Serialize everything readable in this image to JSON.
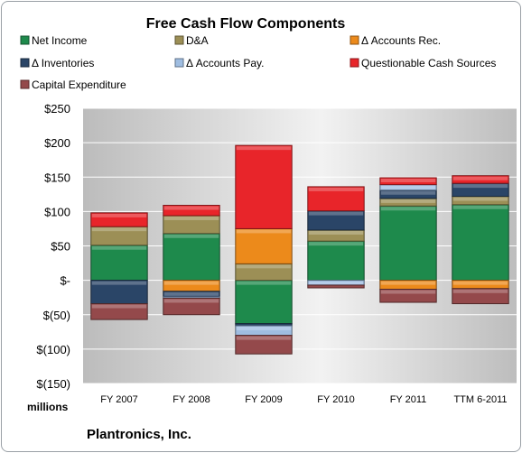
{
  "chart_data": {
    "type": "bar",
    "stacked": true,
    "title": "Free Cash Flow Components",
    "unit_label": "millions",
    "company": "Plantronics, Inc.",
    "categories": [
      "FY 2007",
      "FY 2008",
      "FY 2009",
      "FY 2010",
      "FY 2011",
      "TTM 6-2011"
    ],
    "ylim": [
      -150,
      250
    ],
    "yticks": [
      250,
      200,
      150,
      100,
      50,
      0,
      -50,
      -100,
      -150
    ],
    "ytick_labels": [
      "$250",
      "$200",
      "$150",
      "$100",
      "$50",
      "$-",
      "$(50)",
      "$(100)",
      "$(150)"
    ],
    "grid": true,
    "legend_position": "top",
    "series": [
      {
        "name": "Net Income",
        "color": "#1e8a4c",
        "values": [
          51,
          68,
          -63,
          57,
          108,
          110
        ]
      },
      {
        "name": "D&A",
        "color": "#9c8f56",
        "values": [
          27,
          26,
          24,
          16,
          11,
          12
        ]
      },
      {
        "name": "Δ Accounts Rec.",
        "color": "#ec8a1b",
        "values": [
          0,
          -16,
          51,
          0,
          -13,
          -12
        ]
      },
      {
        "name": "Δ Inventories",
        "color": "#2a4567",
        "values": [
          -34,
          -8,
          -3,
          28,
          12,
          19
        ]
      },
      {
        "name": "Δ Accounts Pay.",
        "color": "#9fbde1",
        "values": [
          0,
          -2,
          -14,
          -7,
          8,
          0
        ]
      },
      {
        "name": "Questionable Cash Sources",
        "color": "#e8252a",
        "values": [
          20,
          15,
          121,
          35,
          10,
          11
        ]
      },
      {
        "name": "Capital Expenditure",
        "color": "#94494b",
        "values": [
          -23,
          -24,
          -27,
          -4,
          -19,
          -22
        ]
      }
    ]
  }
}
